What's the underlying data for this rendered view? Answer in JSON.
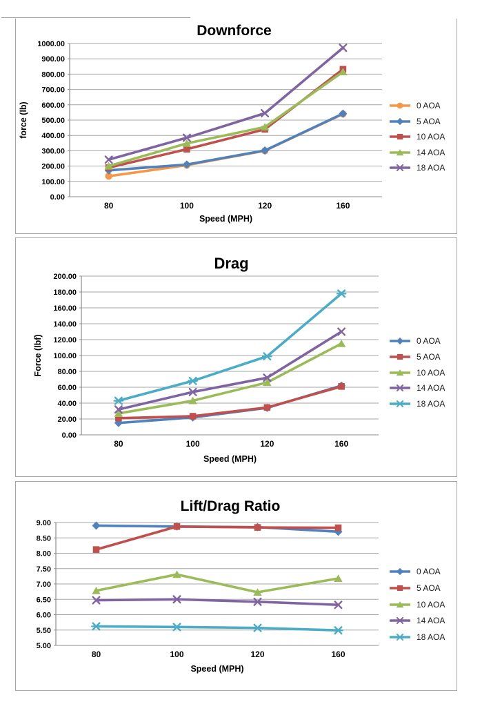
{
  "styles": {
    "gridline_color": "#a6a6a6",
    "axis_color": "#8c8c8c",
    "box_border_color": "#a6a6a6",
    "text_color": "#000000",
    "background_color": "#ffffff"
  },
  "chart_data": [
    {
      "type": "line",
      "title": "Downforce",
      "xlabel": "Speed (MPH)",
      "ylabel": "force (lb)",
      "categories": [
        "80",
        "100",
        "120",
        "160"
      ],
      "ylim": [
        0,
        1000
      ],
      "ytick_step": 100,
      "ytick_decimals": 2,
      "grid": true,
      "legend_position": "right",
      "series": [
        {
          "name": "0 AOA",
          "color": "#F79646",
          "marker": "circle",
          "values": [
            134,
            206,
            300,
            540
          ]
        },
        {
          "name": "5 AOA",
          "color": "#4F81BD",
          "marker": "diamond",
          "values": [
            172,
            210,
            302,
            542
          ]
        },
        {
          "name": "10 AOA",
          "color": "#C0504D",
          "marker": "square",
          "values": [
            190,
            310,
            440,
            832
          ]
        },
        {
          "name": "14 AOA",
          "color": "#9BBB59",
          "marker": "triangle",
          "values": [
            200,
            348,
            455,
            815
          ]
        },
        {
          "name": "18 AOA",
          "color": "#8064A2",
          "marker": "x",
          "values": [
            242,
            385,
            545,
            972
          ]
        }
      ]
    },
    {
      "type": "line",
      "title": "Drag",
      "xlabel": "Speed (MPH)",
      "ylabel": "Force (lbf)",
      "categories": [
        "80",
        "100",
        "120",
        "160"
      ],
      "ylim": [
        0,
        200
      ],
      "ytick_step": 20,
      "ytick_decimals": 2,
      "grid": true,
      "legend_position": "right",
      "series": [
        {
          "name": "0 AOA",
          "color": "#4F81BD",
          "marker": "diamond",
          "values": [
            15,
            22,
            34,
            62
          ]
        },
        {
          "name": "5 AOA",
          "color": "#C0504D",
          "marker": "square",
          "values": [
            21,
            23.5,
            34.5,
            61
          ]
        },
        {
          "name": "10 AOA",
          "color": "#9BBB59",
          "marker": "triangle",
          "values": [
            27,
            43,
            66,
            115
          ]
        },
        {
          "name": "14 AOA",
          "color": "#8064A2",
          "marker": "x",
          "values": [
            32,
            54,
            72,
            130
          ]
        },
        {
          "name": "18 AOA",
          "color": "#4BACC6",
          "marker": "star",
          "values": [
            43,
            68,
            99,
            178
          ]
        }
      ]
    },
    {
      "type": "line",
      "title": "Lift/Drag Ratio",
      "xlabel": "Speed (MPH)",
      "ylabel": "",
      "categories": [
        "80",
        "100",
        "120",
        "160"
      ],
      "ylim": [
        5,
        9
      ],
      "ytick_step": 0.5,
      "ytick_decimals": 2,
      "grid": true,
      "legend_position": "right",
      "series": [
        {
          "name": "0 AOA",
          "color": "#4F81BD",
          "marker": "diamond",
          "values": [
            8.9,
            8.87,
            8.85,
            8.7
          ]
        },
        {
          "name": "5 AOA",
          "color": "#C0504D",
          "marker": "square",
          "values": [
            8.12,
            8.87,
            8.84,
            8.83
          ]
        },
        {
          "name": "10 AOA",
          "color": "#9BBB59",
          "marker": "triangle",
          "values": [
            6.78,
            7.31,
            6.73,
            7.18
          ]
        },
        {
          "name": "14 AOA",
          "color": "#8064A2",
          "marker": "x",
          "values": [
            6.47,
            6.5,
            6.42,
            6.32
          ]
        },
        {
          "name": "18 AOA",
          "color": "#4BACC6",
          "marker": "star",
          "values": [
            5.62,
            5.6,
            5.57,
            5.49
          ]
        }
      ]
    }
  ]
}
